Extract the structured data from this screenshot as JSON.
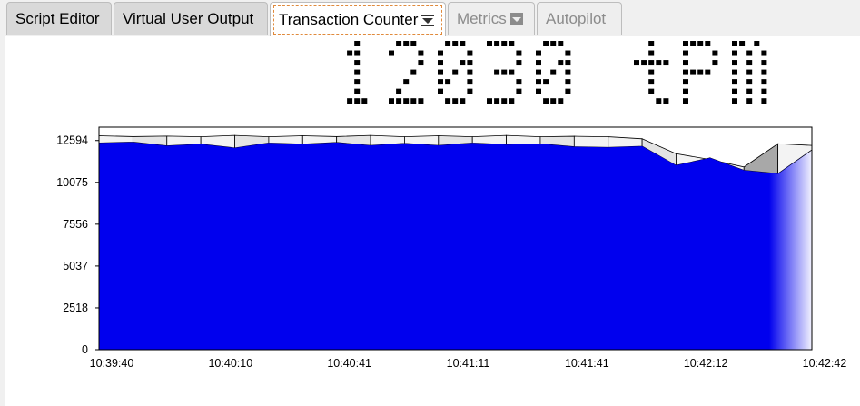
{
  "tabs": [
    {
      "label": "Script Editor",
      "state": "normal"
    },
    {
      "label": "Virtual User Output",
      "state": "normal"
    },
    {
      "label": "Transaction Counter",
      "state": "active",
      "icon": "menu-dropdown-icon"
    },
    {
      "label": "Metrics",
      "state": "disabled",
      "icon": "menu-dropdown-icon"
    },
    {
      "label": "Autopilot",
      "state": "disabled"
    }
  ],
  "counter": {
    "value": "12030",
    "unit": "tpm",
    "color": "#000000"
  },
  "chart_data": {
    "type": "area",
    "x_ticks": [
      "10:39:40",
      "10:40:10",
      "10:40:41",
      "10:41:11",
      "10:41:41",
      "10:42:12",
      "10:42:42"
    ],
    "y_ticks": [
      0,
      2518,
      5037,
      7556,
      10075,
      12594
    ],
    "ylim": [
      0,
      13400
    ],
    "x_start": "10:39:40",
    "x_end": "10:42:42",
    "series_fill": "#0000ee",
    "values": [
      12450,
      12500,
      12280,
      12380,
      12150,
      12450,
      12380,
      12480,
      12300,
      12430,
      12300,
      12450,
      12350,
      12400,
      12220,
      12180,
      12250,
      11100,
      11550,
      10800,
      10600,
      12030
    ],
    "upper_band": [
      12880,
      12830,
      12860,
      12820,
      12900,
      12820,
      12880,
      12830,
      12900,
      12820,
      12880,
      12820,
      12900,
      12820,
      12850,
      12820,
      12700,
      11800,
      11450,
      11000,
      12400,
      12300
    ],
    "grid": false,
    "legend": "none"
  }
}
